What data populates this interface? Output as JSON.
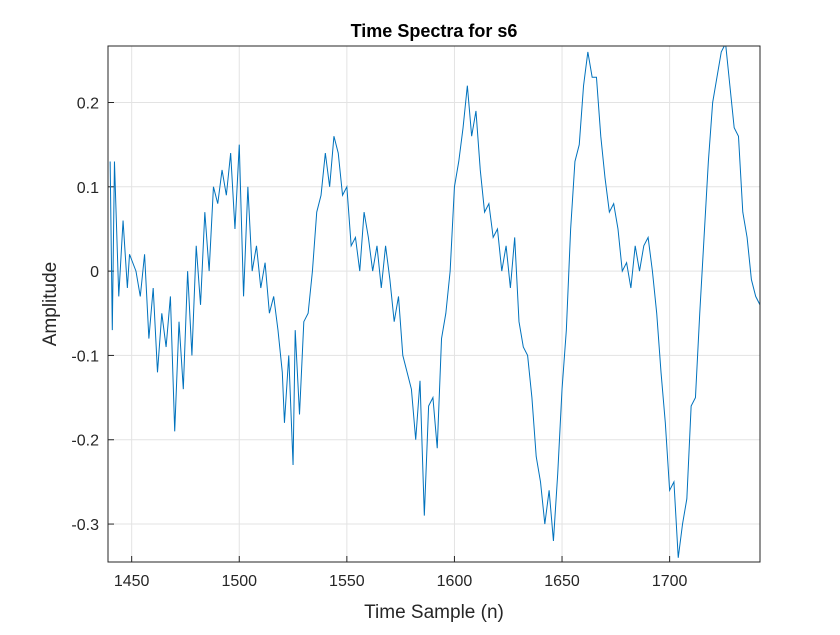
{
  "chart_data": {
    "type": "line",
    "title": "Time Spectra for s6",
    "x_label": "Time Sample (n)",
    "y_label": "Amplitude",
    "x": [
      1440,
      1441,
      1442,
      1444,
      1446,
      1448,
      1449,
      1452,
      1454,
      1456,
      1458,
      1460,
      1462,
      1464,
      1466,
      1468,
      1470,
      1472,
      1474,
      1476,
      1478,
      1480,
      1482,
      1484,
      1486,
      1488,
      1490,
      1492,
      1494,
      1496,
      1498,
      1500,
      1502,
      1504,
      1506,
      1508,
      1510,
      1512,
      1514,
      1516,
      1518,
      1520,
      1521,
      1523,
      1525,
      1526,
      1528,
      1530,
      1532,
      1534,
      1536,
      1538,
      1540,
      1542,
      1544,
      1546,
      1548,
      1550,
      1552,
      1554,
      1556,
      1558,
      1560,
      1562,
      1564,
      1566,
      1568,
      1570,
      1572,
      1574,
      1576,
      1578,
      1580,
      1582,
      1584,
      1586,
      1588,
      1590,
      1592,
      1594,
      1596,
      1598,
      1600,
      1602,
      1604,
      1606,
      1608,
      1610,
      1612,
      1614,
      1616,
      1618,
      1620,
      1622,
      1624,
      1626,
      1628,
      1630,
      1632,
      1634,
      1636,
      1638,
      1640,
      1642,
      1644,
      1646,
      1648,
      1650,
      1652,
      1654,
      1656,
      1658,
      1660,
      1662,
      1664,
      1666,
      1668,
      1670,
      1672,
      1674,
      1676,
      1678,
      1680,
      1682,
      1684,
      1686,
      1688,
      1690,
      1692,
      1694,
      1696,
      1698,
      1700,
      1702,
      1704,
      1706,
      1708,
      1710,
      1712,
      1714,
      1716,
      1718,
      1720,
      1722,
      1724,
      1726,
      1728,
      1730,
      1732,
      1734,
      1736,
      1738,
      1740,
      1742
    ],
    "series": [
      {
        "name": "s6",
        "color": "#0072bd",
        "values": [
          0.13,
          -0.07,
          0.13,
          -0.03,
          0.06,
          -0.02,
          0.02,
          0.0,
          -0.03,
          0.02,
          -0.08,
          -0.02,
          -0.12,
          -0.05,
          -0.09,
          -0.03,
          -0.19,
          -0.06,
          -0.14,
          0.0,
          -0.1,
          0.03,
          -0.04,
          0.07,
          0.0,
          0.1,
          0.08,
          0.12,
          0.09,
          0.14,
          0.05,
          0.15,
          -0.03,
          0.1,
          0.0,
          0.03,
          -0.02,
          0.01,
          -0.05,
          -0.03,
          -0.07,
          -0.12,
          -0.18,
          -0.1,
          -0.23,
          -0.07,
          -0.17,
          -0.06,
          -0.05,
          0.0,
          0.07,
          0.09,
          0.14,
          0.1,
          0.16,
          0.14,
          0.09,
          0.1,
          0.03,
          0.04,
          0.0,
          0.07,
          0.04,
          0.0,
          0.03,
          -0.02,
          0.03,
          -0.01,
          -0.06,
          -0.03,
          -0.1,
          -0.12,
          -0.14,
          -0.2,
          -0.13,
          -0.29,
          -0.16,
          -0.15,
          -0.21,
          -0.08,
          -0.05,
          0.0,
          0.1,
          0.13,
          0.17,
          0.22,
          0.16,
          0.19,
          0.12,
          0.07,
          0.08,
          0.04,
          0.05,
          0.0,
          0.03,
          -0.02,
          0.04,
          -0.06,
          -0.09,
          -0.1,
          -0.15,
          -0.22,
          -0.25,
          -0.3,
          -0.26,
          -0.32,
          -0.24,
          -0.14,
          -0.07,
          0.05,
          0.13,
          0.15,
          0.22,
          0.26,
          0.23,
          0.23,
          0.16,
          0.11,
          0.07,
          0.08,
          0.05,
          0.0,
          0.01,
          -0.02,
          0.03,
          0.0,
          0.03,
          0.04,
          0.0,
          -0.05,
          -0.12,
          -0.18,
          -0.26,
          -0.25,
          -0.34,
          -0.3,
          -0.27,
          -0.16,
          -0.15,
          -0.05,
          0.04,
          0.13,
          0.2,
          0.23,
          0.26,
          0.27,
          0.22,
          0.17,
          0.16,
          0.07,
          0.04,
          -0.01,
          -0.03,
          -0.04
        ]
      }
    ],
    "xlim": [
      1439,
      1742
    ],
    "ylim": [
      -0.345,
      0.267
    ],
    "xticks": [
      1450,
      1500,
      1550,
      1600,
      1650,
      1700
    ],
    "yticks": [
      -0.3,
      -0.2,
      -0.1,
      0,
      0.1,
      0.2
    ],
    "grid": true
  }
}
